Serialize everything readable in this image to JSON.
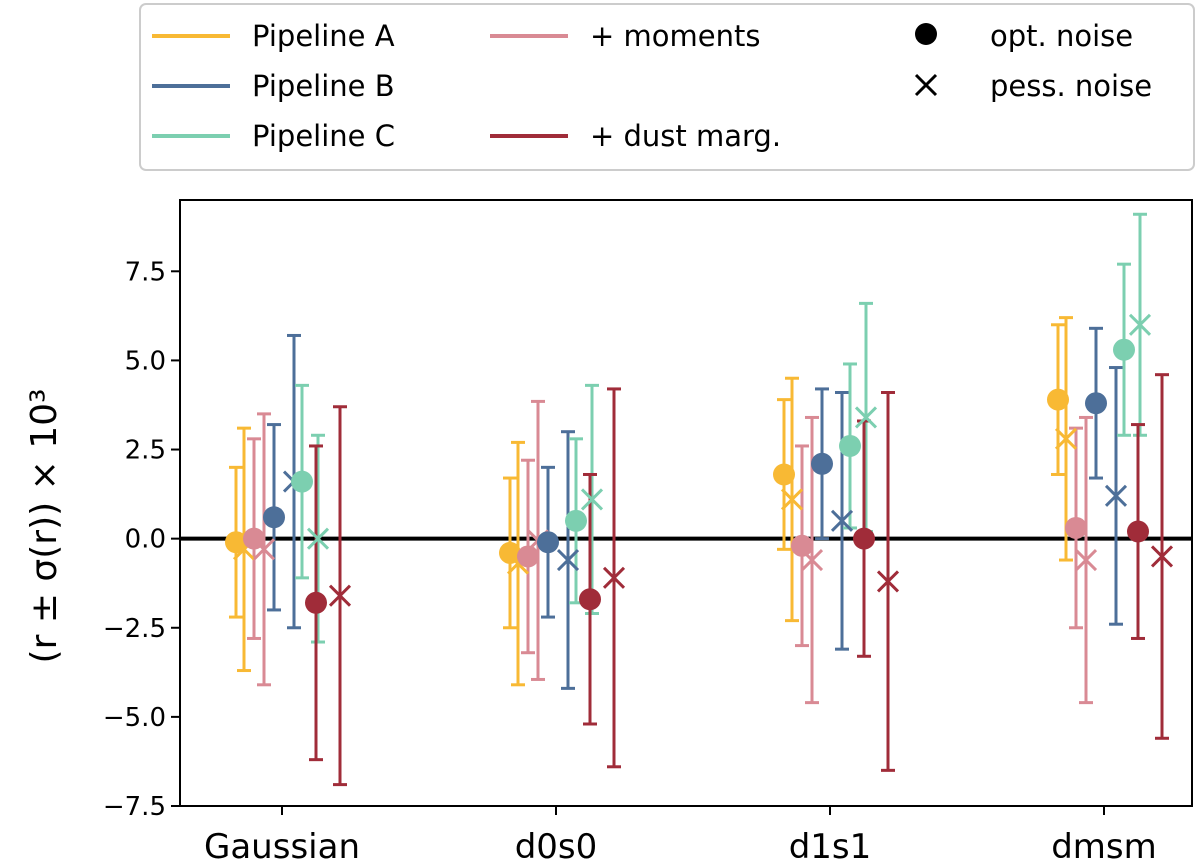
{
  "chart_data": {
    "type": "scatter",
    "ylabel": "(r ± σ(r)) × 10³",
    "xlabel": "",
    "categories": [
      "Gaussian",
      "d0s0",
      "d1s1",
      "dmsm"
    ],
    "ylim": [
      -7.5,
      9.5
    ],
    "yticks": [
      -7.5,
      -5.0,
      -2.5,
      0.0,
      2.5,
      5.0,
      7.5
    ],
    "ytick_labels": [
      "−7.5",
      "−5.0",
      "−2.5",
      "0.0",
      "2.5",
      "5.0",
      "7.5"
    ],
    "reference_line": 0,
    "legend_position": "top, outside plot",
    "noise_markers": [
      {
        "label": "opt. noise",
        "marker": "circle"
      },
      {
        "label": "pess. noise",
        "marker": "cross"
      }
    ],
    "series": [
      {
        "name": "Pipeline A",
        "color": "#f8b934",
        "opt": [
          {
            "y": -0.1,
            "err": 2.1
          },
          {
            "y": -0.4,
            "err": 2.1
          },
          {
            "y": 1.8,
            "err": 2.1
          },
          {
            "y": 3.9,
            "err": 2.1
          }
        ],
        "pess": [
          {
            "y": -0.3,
            "err": 3.4
          },
          {
            "y": -0.7,
            "err": 3.4
          },
          {
            "y": 1.1,
            "err": 3.4
          },
          {
            "y": 2.8,
            "err": 3.4
          }
        ]
      },
      {
        "name": "+ moments",
        "color": "#d98a94",
        "opt": [
          {
            "y": 0.0,
            "err": 2.8
          },
          {
            "y": -0.5,
            "err": 2.7
          },
          {
            "y": -0.2,
            "err": 2.8
          },
          {
            "y": 0.3,
            "err": 2.8
          }
        ],
        "pess": [
          {
            "y": -0.3,
            "err": 3.8
          },
          {
            "y": -0.05,
            "err": 3.9
          },
          {
            "y": -0.6,
            "err": 4.0
          },
          {
            "y": -0.6,
            "err": 4.0
          }
        ]
      },
      {
        "name": "Pipeline B",
        "color": "#4d6f99",
        "opt": [
          {
            "y": 0.6,
            "err": 2.6
          },
          {
            "y": -0.1,
            "err": 2.1
          },
          {
            "y": 2.1,
            "err": 2.1
          },
          {
            "y": 3.8,
            "err": 2.1
          }
        ],
        "pess": [
          {
            "y": 1.6,
            "err": 4.1
          },
          {
            "y": -0.6,
            "err": 3.6
          },
          {
            "y": 0.5,
            "err": 3.6
          },
          {
            "y": 1.2,
            "err": 3.6
          }
        ]
      },
      {
        "name": "Pipeline C",
        "color": "#7ccfb0",
        "opt": [
          {
            "y": 1.6,
            "err": 2.7
          },
          {
            "y": 0.5,
            "err": 2.3
          },
          {
            "y": 2.6,
            "err": 2.3
          },
          {
            "y": 5.3,
            "err": 2.4
          }
        ],
        "pess": [
          {
            "y": 0.0,
            "err": 2.9
          },
          {
            "y": 1.1,
            "err": 3.2
          },
          {
            "y": 3.4,
            "err": 3.2
          },
          {
            "y": 6.0,
            "err": 3.1
          }
        ]
      },
      {
        "name": "+ dust marg.",
        "color": "#a02c39",
        "opt": [
          {
            "y": -1.8,
            "err": 4.4
          },
          {
            "y": -1.7,
            "err": 3.5
          },
          {
            "y": 0.0,
            "err": 3.3
          },
          {
            "y": 0.2,
            "err": 3.0
          }
        ],
        "pess": [
          {
            "y": -1.6,
            "err": 5.3
          },
          {
            "y": -1.1,
            "err": 5.3
          },
          {
            "y": -1.2,
            "err": 5.3
          },
          {
            "y": -0.5,
            "err": 5.1
          }
        ]
      }
    ]
  }
}
